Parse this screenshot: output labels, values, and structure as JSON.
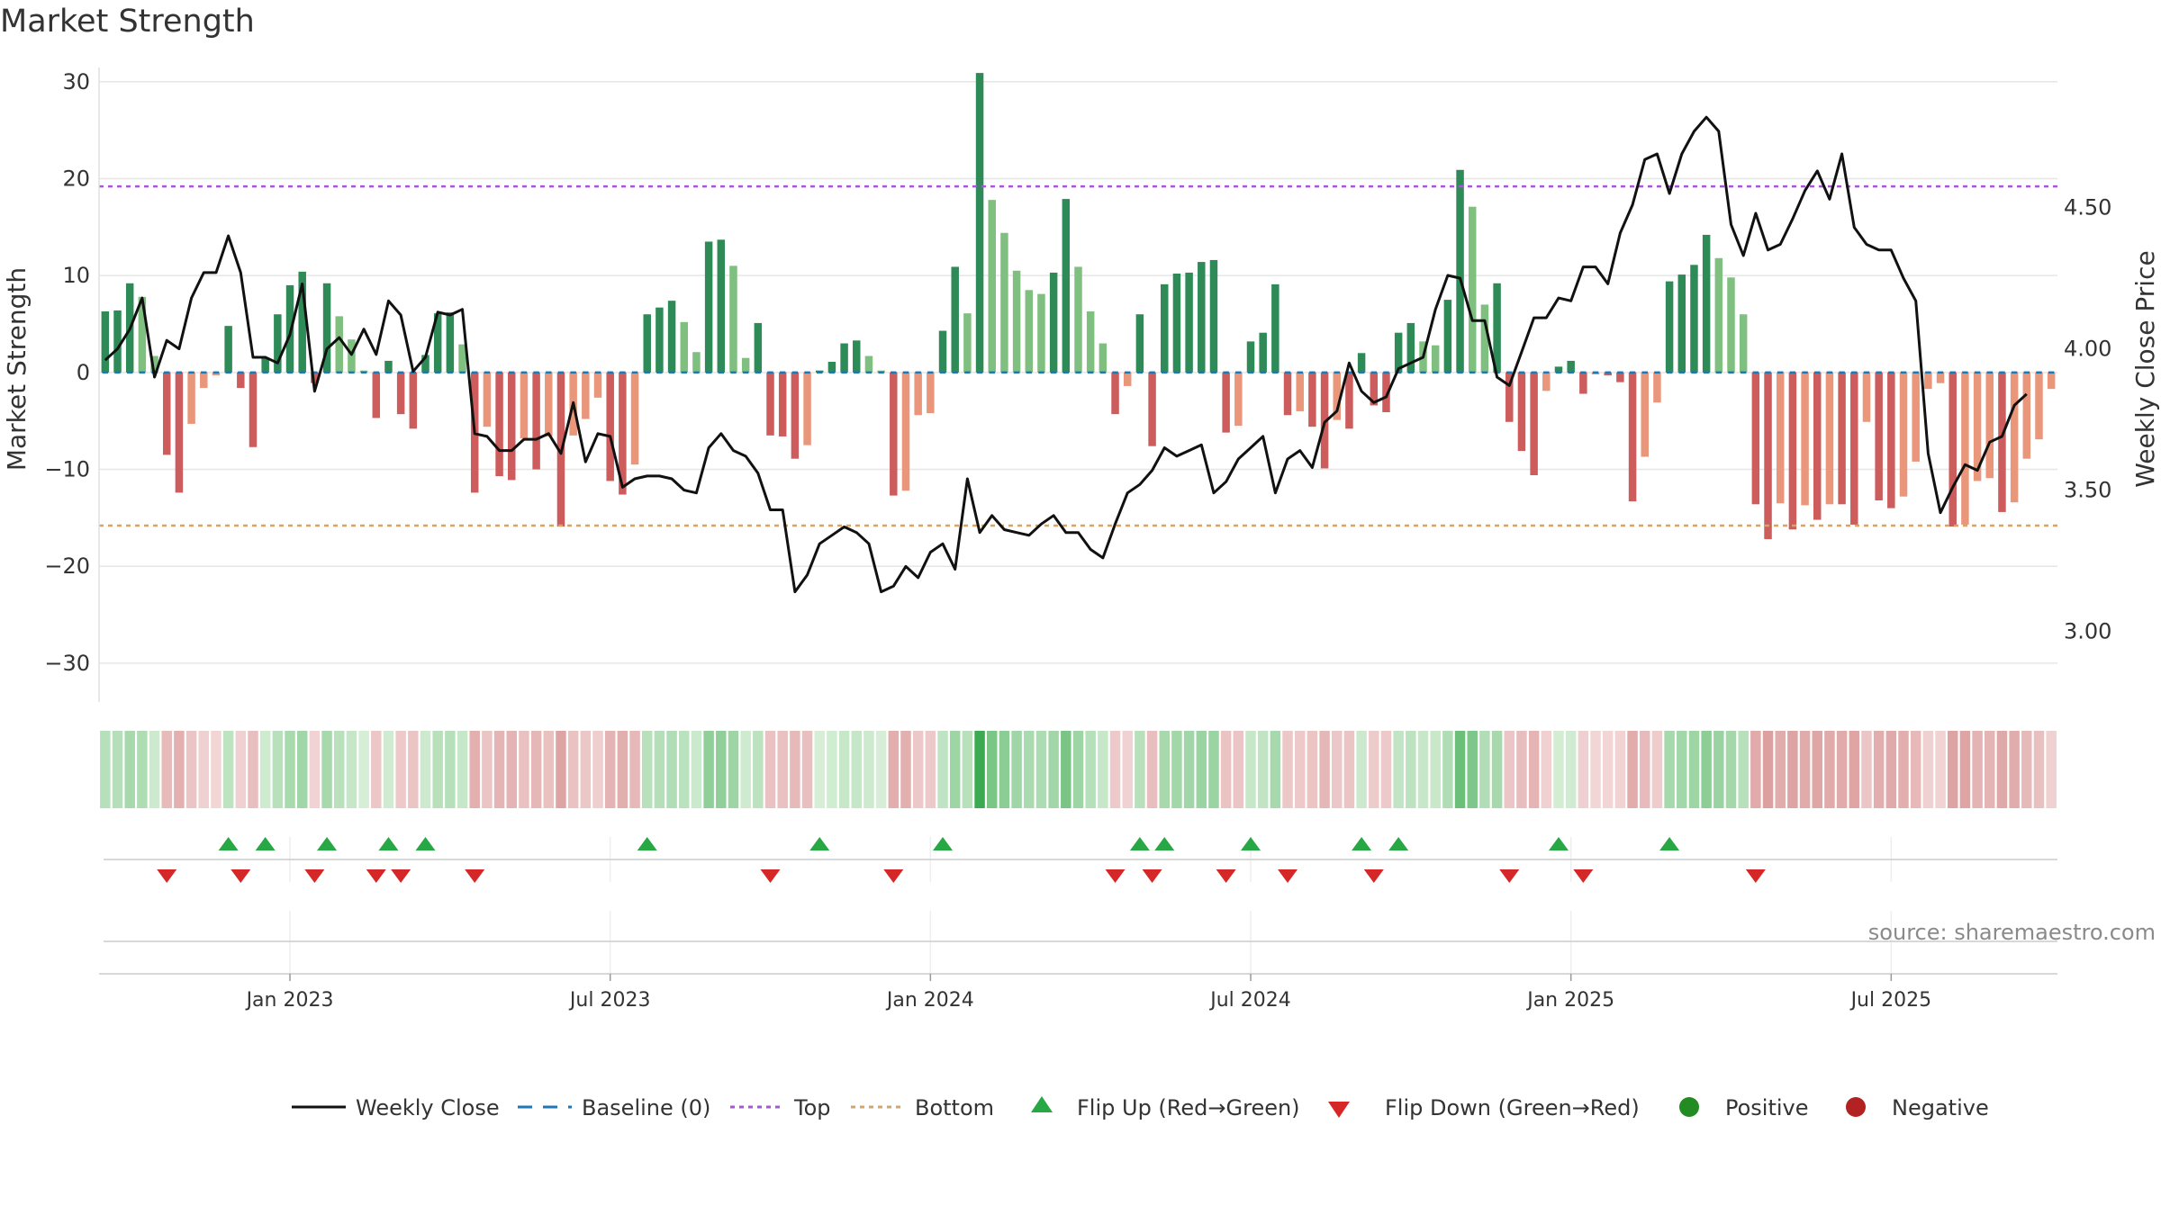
{
  "chart_data": {
    "type": "bar",
    "title": "Market Strength",
    "ylabel": "Market Strength",
    "y2label": "Weekly Close Price",
    "ylim": [
      -34,
      31
    ],
    "y2lim": [
      2.75,
      4.98
    ],
    "yticks": [
      30,
      20,
      10,
      0,
      -10,
      -20,
      -30
    ],
    "yticklabels": [
      "30",
      "20",
      "10",
      "0",
      "−10",
      "−20",
      "−30"
    ],
    "y2ticks": [
      4.5,
      4.0,
      3.5,
      3.0
    ],
    "y2ticklabels": [
      "4.50",
      "4.00",
      "3.50",
      "3.00"
    ],
    "xticks": [
      {
        "week": 15,
        "label": "Jan 2023"
      },
      {
        "week": 41,
        "label": "Jul 2023"
      },
      {
        "week": 67,
        "label": "Jan 2024"
      },
      {
        "week": 93,
        "label": "Jul 2024"
      },
      {
        "week": 119,
        "label": "Jan 2025"
      },
      {
        "week": 145,
        "label": "Jul 2025"
      }
    ],
    "top_line": 19.2,
    "bottom_line": -15.8,
    "strength": [
      6.3,
      6.4,
      9.2,
      7.8,
      1.7,
      -8.5,
      -12.4,
      -5.3,
      -1.6,
      -0.3,
      4.8,
      -1.6,
      -7.7,
      1.5,
      6.0,
      9.0,
      10.4,
      -1.1,
      9.2,
      5.8,
      3.4,
      0.2,
      -4.7,
      1.2,
      -4.3,
      -5.8,
      1.8,
      6.1,
      6.2,
      2.9,
      -12.4,
      -5.6,
      -10.7,
      -11.1,
      -6.8,
      -10.0,
      -6.6,
      -15.9,
      -6.5,
      -4.8,
      -2.6,
      -11.2,
      -12.6,
      -9.5,
      6.0,
      6.7,
      7.4,
      5.2,
      2.1,
      13.5,
      13.7,
      11.0,
      1.5,
      5.1,
      -6.5,
      -6.6,
      -8.9,
      -7.5,
      0.2,
      1.1,
      3.0,
      3.3,
      1.7,
      0.2,
      -12.7,
      -12.2,
      -4.4,
      -4.2,
      4.3,
      10.9,
      6.1,
      30.9,
      17.8,
      14.4,
      10.5,
      8.5,
      8.1,
      10.3,
      17.9,
      10.9,
      6.3,
      3.0,
      -4.3,
      -1.4,
      6.0,
      -7.6,
      9.1,
      10.2,
      10.3,
      11.4,
      11.6,
      -6.2,
      -5.5,
      3.2,
      4.1,
      9.1,
      -4.4,
      -4.0,
      -5.6,
      -9.9,
      -4.9,
      -5.8,
      2.0,
      -3.4,
      -4.1,
      4.1,
      5.1,
      3.2,
      2.8,
      7.5,
      20.9,
      17.1,
      7.0,
      9.2,
      -5.1,
      -8.1,
      -10.6,
      -1.9,
      0.6,
      1.2,
      -2.2,
      -0.2,
      -0.3,
      -1.0,
      -13.3,
      -8.7,
      -3.1,
      9.4,
      10.1,
      11.1,
      14.2,
      11.8,
      9.8,
      6.0,
      -13.6,
      -17.2,
      -13.5,
      -16.2,
      -13.7,
      -15.2,
      -13.6,
      -13.6,
      -15.7,
      -5.1,
      -13.2,
      -14.0,
      -12.8,
      -9.2,
      -1.7,
      -1.1,
      -15.9,
      -15.7,
      -11.2,
      -10.9,
      -14.4,
      -13.4,
      -8.9,
      -6.9,
      -1.7
    ],
    "weekly_close": [
      3.96,
      4.0,
      4.07,
      4.18,
      3.9,
      4.03,
      4.0,
      4.18,
      4.27,
      4.27,
      4.4,
      4.27,
      3.97,
      3.97,
      3.95,
      4.05,
      4.23,
      3.85,
      4.0,
      4.04,
      3.98,
      4.07,
      3.98,
      4.17,
      4.12,
      3.92,
      3.97,
      4.13,
      4.12,
      4.14,
      3.7,
      3.69,
      3.64,
      3.64,
      3.68,
      3.68,
      3.7,
      3.63,
      3.81,
      3.6,
      3.7,
      3.69,
      3.51,
      3.54,
      3.55,
      3.55,
      3.54,
      3.5,
      3.49,
      3.65,
      3.7,
      3.64,
      3.62,
      3.56,
      3.43,
      3.43,
      3.14,
      3.2,
      3.31,
      3.34,
      3.37,
      3.35,
      3.31,
      3.14,
      3.16,
      3.23,
      3.19,
      3.28,
      3.31,
      3.22,
      3.54,
      3.35,
      3.41,
      3.36,
      3.35,
      3.34,
      3.38,
      3.41,
      3.35,
      3.35,
      3.29,
      3.26,
      3.38,
      3.49,
      3.52,
      3.57,
      3.65,
      3.62,
      3.64,
      3.66,
      3.49,
      3.53,
      3.61,
      3.65,
      3.69,
      3.49,
      3.61,
      3.64,
      3.58,
      3.74,
      3.78,
      3.95,
      3.85,
      3.81,
      3.83,
      3.93,
      3.95,
      3.97,
      4.14,
      4.26,
      4.25,
      4.1,
      4.1,
      3.9,
      3.87,
      3.99,
      4.11,
      4.11,
      4.18,
      4.17,
      4.29,
      4.29,
      4.23,
      4.41,
      4.51,
      4.67,
      4.69,
      4.55,
      4.69,
      4.77,
      4.82,
      4.77,
      4.44,
      4.33,
      4.48,
      4.35,
      4.37,
      4.46,
      4.56,
      4.63,
      4.53,
      4.69,
      4.43,
      4.37,
      4.35,
      4.35,
      4.25,
      4.17,
      3.63,
      3.42,
      3.51,
      3.59,
      3.57,
      3.67,
      3.69,
      3.8,
      3.84
    ]
  },
  "legend": {
    "weekly_close": "Weekly Close",
    "baseline": "Baseline (0)",
    "top": "Top",
    "bottom": "Bottom",
    "flip_up": "Flip Up (Red→Green)",
    "flip_down": "Flip Down (Green→Red)",
    "positive": "Positive",
    "negative": "Negative"
  },
  "source": "source: sharemaestro.com",
  "colors": {
    "dark_green": "#2e8b57",
    "light_green": "#7fbf7f",
    "dark_red": "#cd5c5c",
    "light_red": "#e9967a",
    "close_line": "#111111",
    "baseline": "#1f77b4",
    "top_line": "#a855d6",
    "bottom_line": "#d4a46a",
    "flip_up": "#28a745",
    "flip_down": "#d62728",
    "positive": "#228b22",
    "negative": "#b22222",
    "grid": "#e6e6e6",
    "source": "#8a8a8a"
  }
}
